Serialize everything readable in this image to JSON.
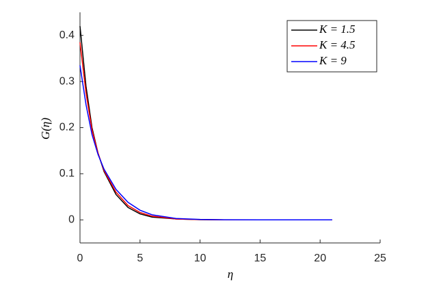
{
  "chart_data": {
    "type": "line",
    "xlabel": "η",
    "ylabel": "G(η)",
    "x": [
      0,
      0.5,
      1,
      1.5,
      2,
      3,
      4,
      5,
      6,
      8,
      10,
      12,
      15,
      18,
      21
    ],
    "series": [
      {
        "name": "K = 1.5",
        "color": "#000000",
        "values": [
          0.42,
          0.29,
          0.2,
          0.145,
          0.105,
          0.055,
          0.027,
          0.013,
          0.006,
          0.002,
          0.0005,
          0,
          0,
          0,
          0
        ]
      },
      {
        "name": "K = 4.5",
        "color": "#ff0000",
        "values": [
          0.385,
          0.275,
          0.195,
          0.145,
          0.107,
          0.06,
          0.031,
          0.016,
          0.008,
          0.002,
          0.0006,
          0,
          0,
          0,
          0
        ]
      },
      {
        "name": "K = 9",
        "color": "#0000ff",
        "values": [
          0.335,
          0.25,
          0.185,
          0.142,
          0.11,
          0.066,
          0.038,
          0.021,
          0.011,
          0.003,
          0.001,
          0.0002,
          0,
          0,
          0
        ]
      }
    ],
    "xlim": [
      0,
      25
    ],
    "xticks": [
      0,
      5,
      10,
      15,
      20,
      25
    ],
    "ylim": [
      -0.05,
      0.45
    ],
    "yticks": [
      0,
      0.1,
      0.2,
      0.3,
      0.4
    ],
    "legend": "top-right"
  }
}
